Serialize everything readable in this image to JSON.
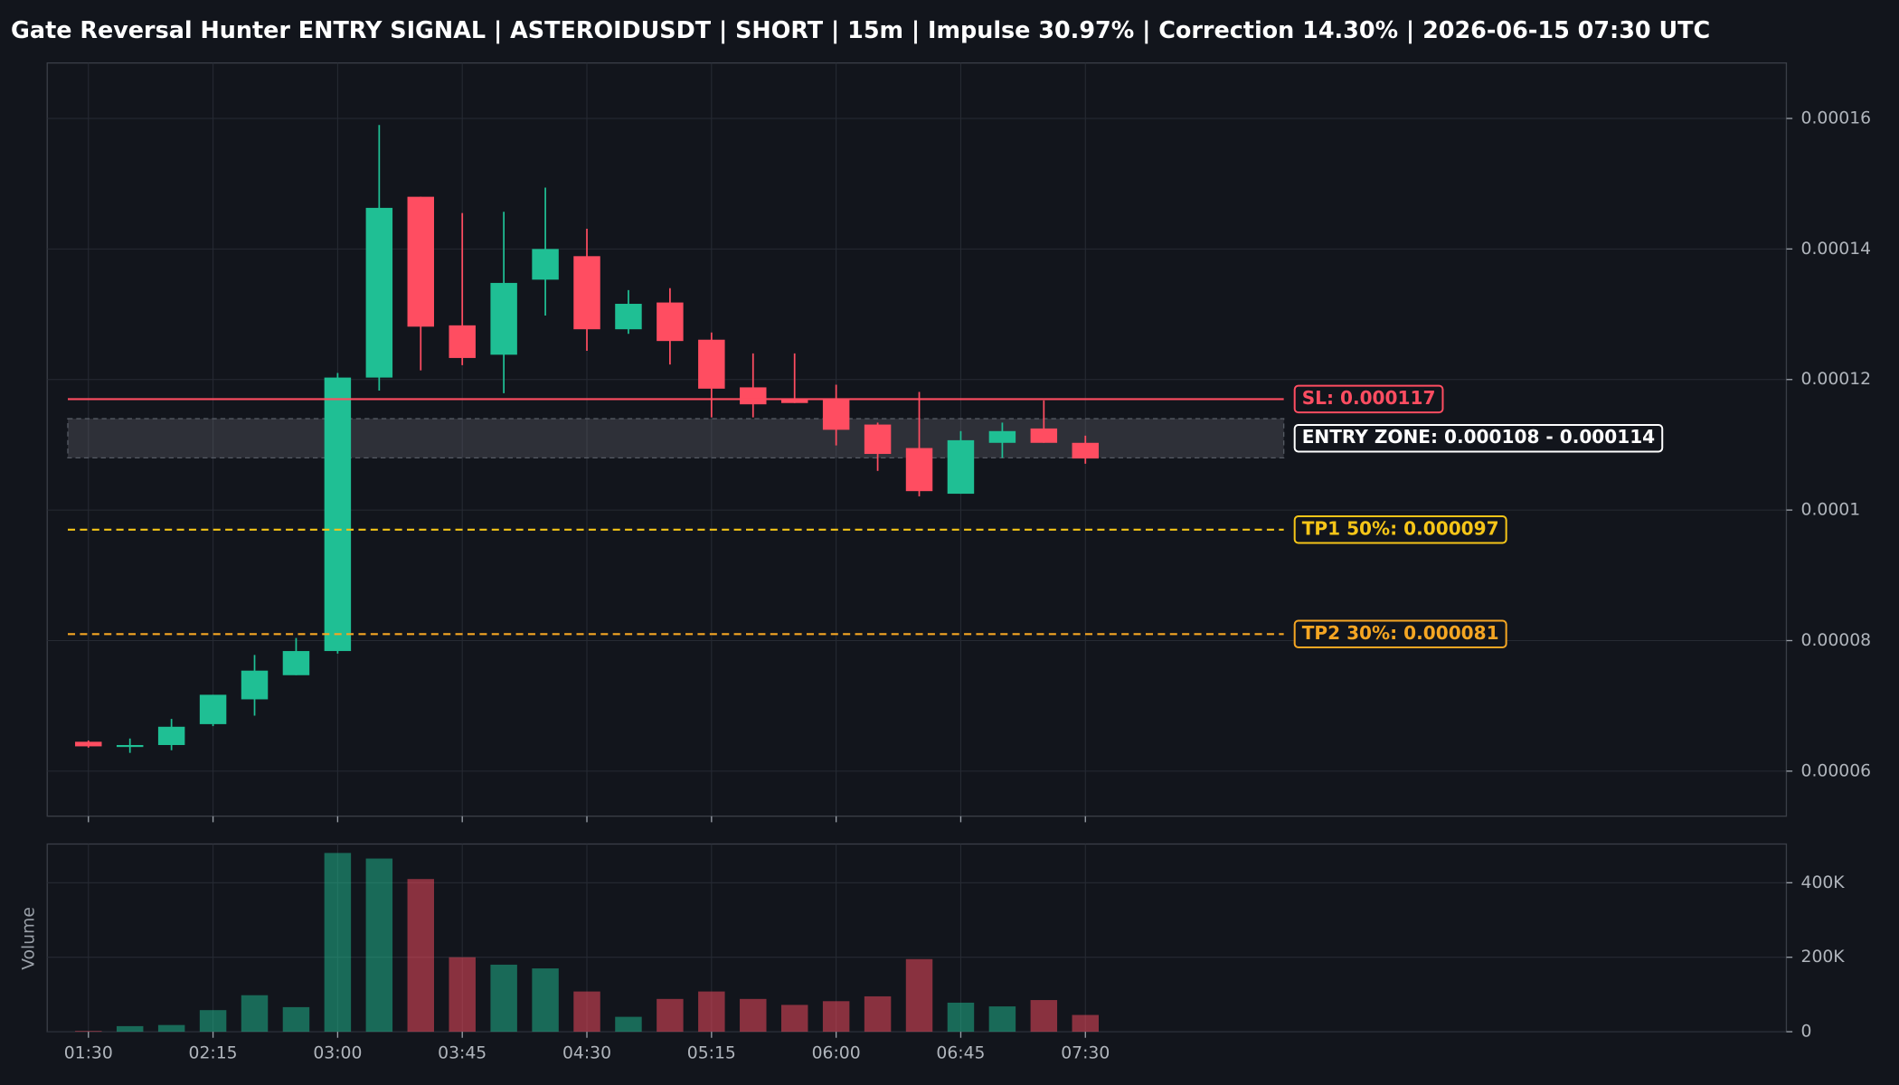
{
  "chart_data": {
    "type": "candlestick",
    "title": "Gate Reversal Hunter ENTRY SIGNAL | ASTEROIDUSDT | SHORT | 15m | Impulse 30.97% | Correction 14.30% | 2026-06-15 07:30 UTC",
    "categories": [
      "01:30",
      null,
      null,
      "02:15",
      null,
      null,
      "03:00",
      null,
      null,
      "03:45",
      null,
      null,
      "04:30",
      null,
      null,
      "05:15",
      null,
      null,
      "06:00",
      null,
      null,
      "06:45",
      null,
      null,
      "07:30"
    ],
    "open": [
      6.45e-05,
      6.37e-05,
      6.4e-05,
      6.72e-05,
      7.1e-05,
      7.47e-05,
      7.84e-05,
      0.0001203,
      0.000148,
      0.0001283,
      0.0001238,
      0.0001353,
      0.0001389,
      0.0001277,
      0.0001318,
      0.0001261,
      0.0001188,
      0.000117,
      0.000117,
      0.0001131,
      0.0001095,
      0.0001025,
      0.0001103,
      0.0001125,
      0.0001103
    ],
    "high": [
      6.47e-05,
      6.5e-05,
      6.8e-05,
      7.17e-05,
      7.78e-05,
      8.04e-05,
      0.000121,
      0.000159,
      0.000148,
      0.0001455,
      0.0001457,
      0.0001494,
      0.0001431,
      0.0001337,
      0.000134,
      0.0001272,
      0.000124,
      0.000124,
      0.0001192,
      0.0001134,
      0.0001181,
      0.0001121,
      0.0001134,
      0.0001168,
      0.0001114
    ],
    "low": [
      6.36e-05,
      6.28e-05,
      6.32e-05,
      6.69e-05,
      6.85e-05,
      7.47e-05,
      7.8e-05,
      0.0001183,
      0.0001214,
      0.0001222,
      0.0001179,
      0.0001298,
      0.0001244,
      0.000127,
      0.0001223,
      0.0001142,
      0.0001142,
      0.0001164,
      0.0001099,
      0.000106,
      0.0001021,
      0.0001025,
      0.000108,
      0.0001103,
      0.0001071
    ],
    "close": [
      6.38e-05,
      6.4e-05,
      6.68e-05,
      7.17e-05,
      7.54e-05,
      7.84e-05,
      0.0001203,
      0.0001463,
      0.0001281,
      0.0001233,
      0.0001348,
      0.00014,
      0.0001277,
      0.0001316,
      0.0001259,
      0.0001186,
      0.0001162,
      0.0001164,
      0.0001123,
      0.0001086,
      0.0001029,
      0.0001107,
      0.0001121,
      0.0001103,
      0.0001079
    ],
    "up_color": "#1fbf94",
    "down_color": "#ff4d61",
    "ylim": [
      5.31e-05,
      0.0001685
    ],
    "yticks": [
      6e-05,
      8e-05,
      0.0001,
      0.00012,
      0.00014,
      0.00016
    ],
    "grid": true,
    "levels": [
      {
        "label": "SL: 0.000117",
        "value": 0.000117,
        "color": "#ff4d61",
        "style": "solid"
      },
      {
        "label": "TP1 50%: 0.000097",
        "value": 9.7e-05,
        "color": "#f5c518",
        "style": "dashed"
      },
      {
        "label": "TP2 30%: 0.000081",
        "value": 8.1e-05,
        "color": "#f5a623",
        "style": "dashed"
      }
    ],
    "entry_zone": {
      "label": "ENTRY ZONE: 0.000108 - 0.000114",
      "low": 0.000108,
      "high": 0.000114,
      "color": "#ffffff"
    },
    "volume": {
      "ylabel": "Volume",
      "values": [
        2000,
        15000,
        18000,
        58000,
        98000,
        66000,
        480000,
        465000,
        410000,
        200000,
        180000,
        170000,
        108000,
        40000,
        88000,
        108000,
        88000,
        72000,
        82000,
        95000,
        195000,
        78000,
        68000,
        85000,
        45000
      ],
      "ylim": [
        0,
        504000
      ],
      "yticks": [
        0,
        {
          "value": 200000,
          "label": "200K"
        },
        {
          "value": 400000,
          "label": "400K"
        }
      ]
    }
  }
}
